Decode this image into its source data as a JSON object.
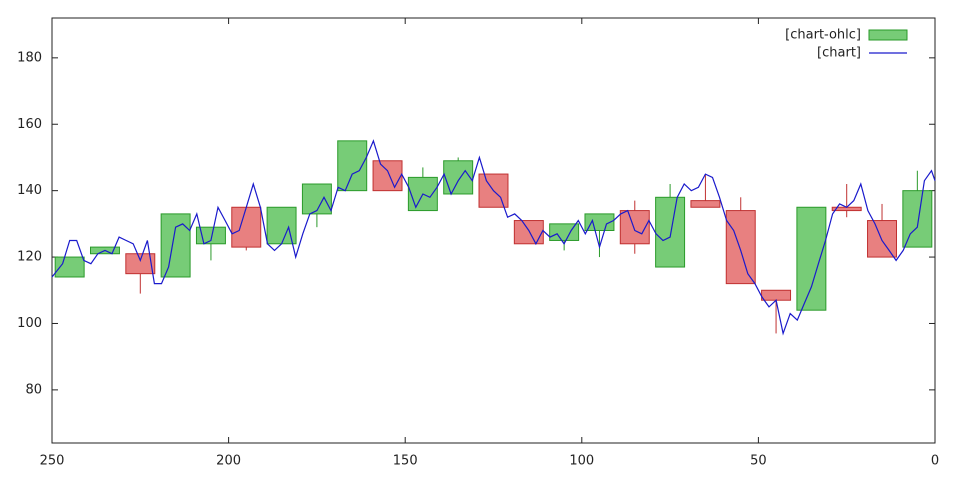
{
  "chart_data": {
    "type": "candlestick",
    "xlim": [
      250,
      0
    ],
    "xticks": [
      250,
      200,
      150,
      100,
      50,
      0
    ],
    "ylim": [
      64,
      192
    ],
    "yticks": [
      80,
      100,
      120,
      140,
      160,
      180
    ],
    "legend": "top-right",
    "grid": false,
    "series": [
      {
        "name": "[chart-ohlc]",
        "type": "candlestick",
        "color": "#77cc77",
        "up_color": "#77cc77",
        "up_stroke": "#2a9a2a",
        "down_color": "#e88080",
        "down_stroke": "#c03030",
        "x": [
          245,
          235,
          225,
          215,
          205,
          195,
          185,
          175,
          165,
          155,
          145,
          135,
          125,
          115,
          105,
          95,
          85,
          75,
          65,
          55,
          45,
          35,
          25,
          15,
          5
        ],
        "open": [
          114,
          121,
          121,
          114,
          124,
          135,
          124,
          133,
          140,
          149,
          134,
          139,
          145,
          131,
          125,
          128,
          134,
          117,
          137,
          134,
          110,
          104,
          135,
          131,
          123
        ],
        "high": [
          120,
          123,
          121,
          133,
          129,
          135,
          135,
          142,
          155,
          149,
          147,
          150,
          145,
          131,
          130,
          133,
          137,
          142,
          145,
          138,
          110,
          135,
          142,
          136,
          146
        ],
        "low": [
          114,
          121,
          109,
          114,
          119,
          122,
          124,
          129,
          140,
          140,
          134,
          139,
          135,
          124,
          122,
          120,
          121,
          117,
          135,
          112,
          97,
          104,
          132,
          120,
          123
        ],
        "close": [
          120,
          123,
          115,
          133,
          129,
          123,
          135,
          142,
          155,
          140,
          144,
          149,
          135,
          124,
          130,
          133,
          124,
          138,
          135,
          112,
          107,
          135,
          134,
          120,
          140
        ]
      },
      {
        "name": "[chart]",
        "type": "line",
        "color": "#1a1acc",
        "x": [
          250,
          247,
          245,
          243,
          241,
          239,
          237,
          235,
          233,
          231,
          229,
          227,
          225,
          223,
          221,
          219,
          217,
          215,
          213,
          211,
          209,
          207,
          205,
          203,
          201,
          199,
          197,
          195,
          193,
          191,
          189,
          187,
          185,
          183,
          181,
          179,
          177,
          175,
          173,
          171,
          169,
          167,
          165,
          163,
          161,
          159,
          157,
          155,
          153,
          151,
          149,
          147,
          145,
          143,
          141,
          139,
          137,
          135,
          133,
          131,
          129,
          127,
          125,
          123,
          121,
          119,
          117,
          115,
          113,
          111,
          109,
          107,
          105,
          103,
          101,
          99,
          97,
          95,
          93,
          91,
          89,
          87,
          85,
          83,
          81,
          79,
          77,
          75,
          73,
          71,
          69,
          67,
          65,
          63,
          61,
          59,
          57,
          55,
          53,
          51,
          49,
          47,
          45,
          43,
          41,
          39,
          37,
          35,
          33,
          31,
          29,
          27,
          25,
          23,
          21,
          19,
          17,
          15,
          13,
          11,
          9,
          7,
          5,
          3,
          1,
          0
        ],
        "values": [
          114,
          118,
          125,
          125,
          119,
          118,
          121,
          122,
          121,
          126,
          125,
          124,
          119,
          125,
          112,
          112,
          117,
          129,
          130,
          128,
          133,
          124,
          125,
          135,
          131,
          127,
          128,
          135,
          142,
          135,
          124,
          122,
          124,
          129,
          120,
          127,
          133,
          134,
          138,
          134,
          141,
          140,
          145,
          146,
          150,
          155,
          148,
          146,
          141,
          145,
          141,
          135,
          139,
          138,
          141,
          145,
          139,
          143,
          146,
          143,
          150,
          143,
          140,
          138,
          132,
          133,
          131,
          128,
          124,
          128,
          126,
          127,
          124,
          128,
          131,
          127,
          131,
          123,
          130,
          131,
          133,
          134,
          128,
          127,
          131,
          127,
          125,
          126,
          138,
          142,
          140,
          141,
          145,
          144,
          138,
          131,
          128,
          122,
          115,
          112,
          108,
          105,
          107,
          97,
          103,
          101,
          106,
          111,
          118,
          125,
          133,
          136,
          135,
          137,
          142,
          134,
          130,
          125,
          122,
          119,
          122,
          127,
          129,
          143,
          146,
          143
        ]
      }
    ]
  }
}
